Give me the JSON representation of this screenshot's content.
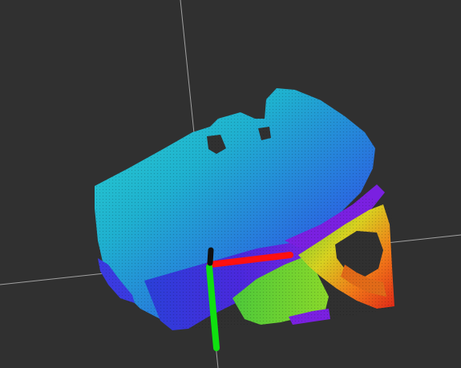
{
  "viewport": {
    "background": "#303030",
    "grid_color": "#a0a0a0"
  },
  "point_cloud": {
    "color_map": "rainbow",
    "colors": {
      "cyan": "#22d4d0",
      "teal": "#1fb8cc",
      "blue": "#2a66e0",
      "deep_blue": "#2230d8",
      "violet": "#5a1edc",
      "magenta": "#a020e0",
      "green": "#7cd62a",
      "yellow": "#e0d020",
      "orange": "#f07818",
      "red": "#e02818"
    }
  },
  "axes": {
    "x_color": "#ff1010",
    "y_color": "#10e010",
    "z_color": "#101010"
  }
}
